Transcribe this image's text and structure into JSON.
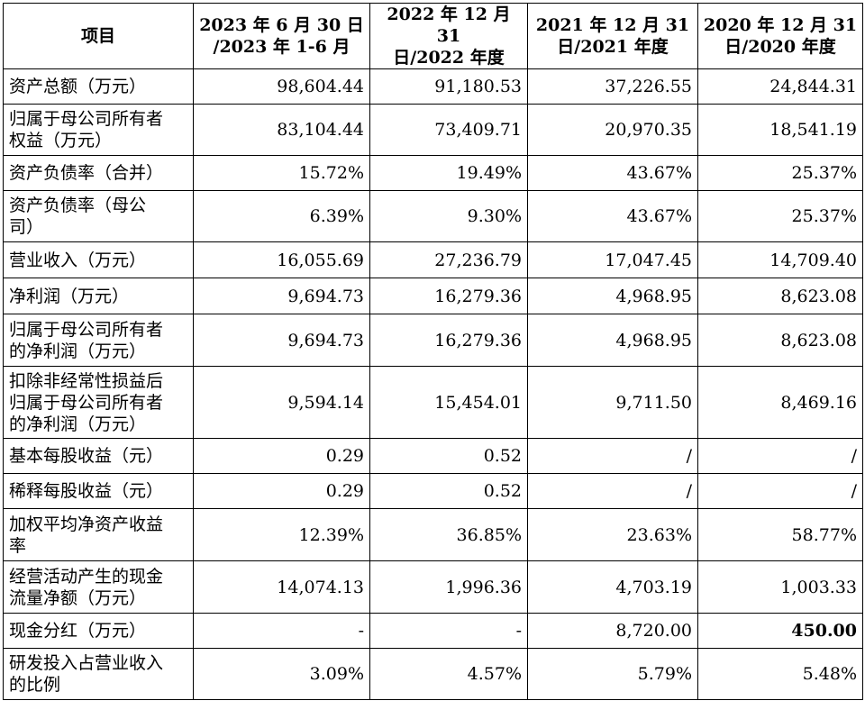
{
  "headers": [
    "项目",
    "2023 年 6 月 30 日/2023 年 1-6 月",
    "2022 年 12 月 31 日/2022 年度",
    "2021 年 12 月 31 日/2021 年度",
    "2020 年 12 月 31 日/2020 年度"
  ],
  "header_lines": [
    [
      "项目"
    ],
    [
      "2023 年 6 月 30 日",
      "/2023 年 1-6 月"
    ],
    [
      "2022 年 12 月 31",
      "日/2022 年度"
    ],
    [
      "2021 年 12 月 31",
      "日/2021 年度"
    ],
    [
      "2020 年 12 月 31",
      "日/2020 年度"
    ]
  ],
  "rows": [
    {
      "label": "资产总额（万元）",
      "values": [
        "98,604.44",
        "91,180.53",
        "37,226.55",
        "24,844.31"
      ]
    },
    {
      "label": "归属于母公司所有者权益（万元）",
      "values": [
        "83,104.44",
        "73,409.71",
        "20,970.35",
        "18,541.19"
      ]
    },
    {
      "label": "资产负债率（合并）",
      "values": [
        "15.72%",
        "19.49%",
        "43.67%",
        "25.37%"
      ]
    },
    {
      "label": "资产负债率（母公司）",
      "values": [
        "6.39%",
        "9.30%",
        "43.67%",
        "25.37%"
      ]
    },
    {
      "label": "营业收入（万元）",
      "values": [
        "16,055.69",
        "27,236.79",
        "17,047.45",
        "14,709.40"
      ]
    },
    {
      "label": "净利润（万元）",
      "values": [
        "9,694.73",
        "16,279.36",
        "4,968.95",
        "8,623.08"
      ]
    },
    {
      "label": "归属于母公司所有者的净利润（万元）",
      "values": [
        "9,694.73",
        "16,279.36",
        "4,968.95",
        "8,623.08"
      ]
    },
    {
      "label": "扣除非经常性损益后归属于母公司所有者的净利润（万元）",
      "values": [
        "9,594.14",
        "15,454.01",
        "9,711.50",
        "8,469.16"
      ]
    },
    {
      "label": "基本每股收益（元）",
      "values": [
        "0.29",
        "0.52",
        "/",
        "/"
      ]
    },
    {
      "label": "稀释每股收益（元）",
      "values": [
        "0.29",
        "0.52",
        "/",
        "/"
      ]
    },
    {
      "label": "加权平均净资产收益率",
      "values": [
        "12.39%",
        "36.85%",
        "23.63%",
        "58.77%"
      ]
    },
    {
      "label": "经营活动产生的现金流量净额（万元）",
      "values": [
        "14,074.13",
        "1,996.36",
        "4,703.19",
        "1,003.33"
      ]
    },
    {
      "label": "现金分红（万元）",
      "values": [
        "-",
        "-",
        "8,720.00",
        "450.00"
      ]
    },
    {
      "label": "研发投入占营业收入的比例",
      "values": [
        "3.09%",
        "4.57%",
        "5.79%",
        "5.48%"
      ]
    }
  ]
}
